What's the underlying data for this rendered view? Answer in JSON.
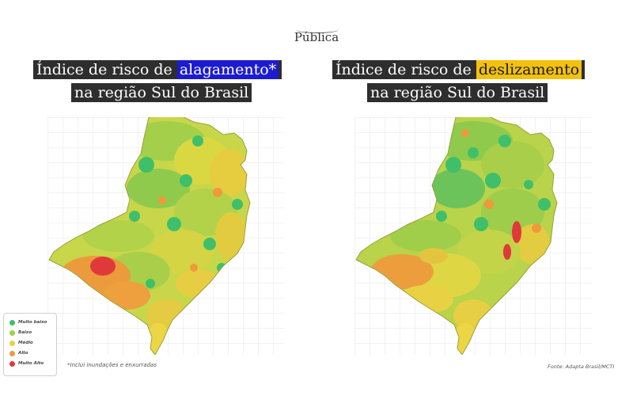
{
  "header": {
    "brand": "Pública"
  },
  "left_map": {
    "title_prefix": "Índice de risco de",
    "title_highlight": "alagamento*",
    "title_line2": "na região Sul do Brasil",
    "highlight_color": "#1d1bd1",
    "footnote": "*Inclui inundações e enxurradas"
  },
  "right_map": {
    "title_prefix": "Índice de risco de",
    "title_highlight": "deslizamento",
    "title_line2": "na região Sul do Brasil",
    "highlight_color": "#f2c10f",
    "source": "Fonte: Adapta Brasil/MCTI"
  },
  "legend": {
    "items": [
      {
        "label": "Muito baixo",
        "color": "#3fbf6a"
      },
      {
        "label": "Baixo",
        "color": "#9cd14a"
      },
      {
        "label": "Médio",
        "color": "#e3d43c"
      },
      {
        "label": "Alto",
        "color": "#f0993c"
      },
      {
        "label": "Muito Alto",
        "color": "#e0393a"
      }
    ]
  }
}
